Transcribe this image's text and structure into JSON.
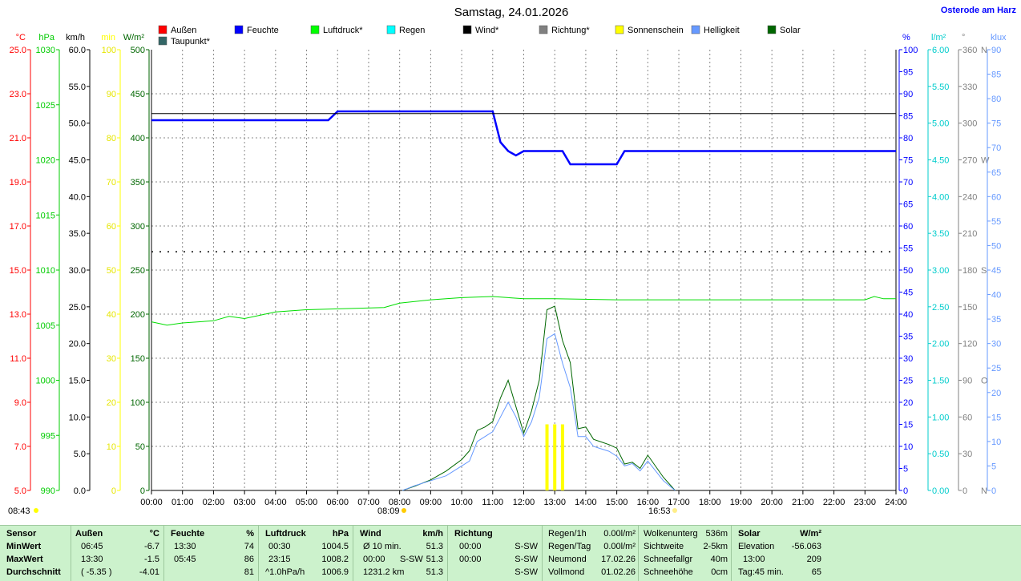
{
  "chart_data": {
    "type": "line",
    "title": "Samstag, 24.01.2026",
    "location": "Osterode am Harz",
    "legend": [
      {
        "label": "Außen",
        "color": "#ff0000"
      },
      {
        "label": "Taupunkt*",
        "color": "#336666"
      },
      {
        "label": "Feuchte",
        "color": "#0000ff"
      },
      {
        "label": "Luftdruck*",
        "color": "#00ff00"
      },
      {
        "label": "Regen",
        "color": "#00ffff"
      },
      {
        "label": "Wind*",
        "color": "#000000"
      },
      {
        "label": "Richtung*",
        "color": "#808080"
      },
      {
        "label": "Sonnenschein",
        "color": "#ffff00"
      },
      {
        "label": "Helligkeit",
        "color": "#6699ff"
      },
      {
        "label": "Solar",
        "color": "#006600"
      }
    ],
    "xlabels": [
      "00:00",
      "01:00",
      "02:00",
      "03:00",
      "04:00",
      "05:00",
      "06:00",
      "07:00",
      "08:00",
      "09:00",
      "10:00",
      "11:00",
      "12:00",
      "13:00",
      "14:00",
      "15:00",
      "16:00",
      "17:00",
      "18:00",
      "19:00",
      "20:00",
      "21:00",
      "22:00",
      "23:00",
      "24:00"
    ],
    "xlim": [
      0,
      24
    ],
    "sunrise": "08:09",
    "sunset": "16:53",
    "moonrise": "08:43",
    "left_axes": [
      {
        "unit": "°C",
        "color": "#ff0000",
        "ticks": [
          "5.0",
          "7.0",
          "9.0",
          "11.0",
          "13.0",
          "15.0",
          "17.0",
          "19.0",
          "21.0",
          "23.0",
          "25.0"
        ]
      },
      {
        "unit": "hPa",
        "color": "#00cc00",
        "ticks": [
          "990",
          "995",
          "1000",
          "1005",
          "1010",
          "1015",
          "1020",
          "1025",
          "1030"
        ]
      },
      {
        "unit": "km/h",
        "color": "#000000",
        "ticks": [
          "0.0",
          "5.0",
          "10.0",
          "15.0",
          "20.0",
          "25.0",
          "30.0",
          "35.0",
          "40.0",
          "45.0",
          "50.0",
          "55.0",
          "60.0"
        ]
      },
      {
        "unit": "min",
        "color": "#ffff00",
        "ticks": [
          "0",
          "10",
          "20",
          "30",
          "40",
          "50",
          "60",
          "70",
          "80",
          "90",
          "100"
        ]
      },
      {
        "unit": "W/m²",
        "color": "#006600",
        "ticks": [
          "0",
          "50",
          "100",
          "150",
          "200",
          "250",
          "300",
          "350",
          "400",
          "450",
          "500"
        ]
      }
    ],
    "right_axes": [
      {
        "unit": "%",
        "color": "#0000ff",
        "ticks": [
          "0",
          "5",
          "10",
          "15",
          "20",
          "25",
          "30",
          "35",
          "40",
          "45",
          "50",
          "55",
          "60",
          "65",
          "70",
          "75",
          "80",
          "85",
          "90",
          "95",
          "100"
        ]
      },
      {
        "unit": "l/m²",
        "color": "#00cccc",
        "ticks": [
          "0.00",
          "0.50",
          "1.00",
          "1.50",
          "2.00",
          "2.50",
          "3.00",
          "3.50",
          "4.00",
          "4.50",
          "5.00",
          "5.50",
          "6.00"
        ]
      },
      {
        "unit": "°",
        "color": "#808080",
        "ticks": [
          "0",
          "30",
          "60",
          "90",
          "120",
          "150",
          "180",
          "210",
          "240",
          "270",
          "300",
          "330",
          "360"
        ],
        "compass": [
          "N",
          "",
          "",
          "O",
          "",
          "",
          "S",
          "",
          "",
          "W",
          "",
          "",
          "N"
        ]
      },
      {
        "unit": "klux",
        "color": "#6699ff",
        "ticks": [
          "0",
          "5",
          "10",
          "15",
          "20",
          "25",
          "30",
          "35",
          "40",
          "45",
          "50",
          "55",
          "60",
          "65",
          "70",
          "75",
          "80",
          "85",
          "90"
        ]
      }
    ],
    "series": [
      {
        "name": "Feuchte",
        "unit": "%",
        "color": "#0000ff",
        "points": [
          [
            0,
            84
          ],
          [
            5.7,
            84
          ],
          [
            6.0,
            86
          ],
          [
            11.0,
            86
          ],
          [
            11.25,
            79
          ],
          [
            11.5,
            77
          ],
          [
            11.75,
            76
          ],
          [
            12.0,
            77
          ],
          [
            13.25,
            77
          ],
          [
            13.5,
            74
          ],
          [
            15.0,
            74
          ],
          [
            15.25,
            77
          ],
          [
            24.0,
            77
          ]
        ]
      },
      {
        "name": "Luftdruck",
        "unit": "hPa",
        "color": "#00dd00",
        "points": [
          [
            0,
            1005.3
          ],
          [
            0.5,
            1005.0
          ],
          [
            1.0,
            1005.2
          ],
          [
            2.0,
            1005.4
          ],
          [
            2.5,
            1005.8
          ],
          [
            3.0,
            1005.6
          ],
          [
            4.0,
            1006.2
          ],
          [
            5.0,
            1006.4
          ],
          [
            7.5,
            1006.6
          ],
          [
            8.0,
            1007.0
          ],
          [
            9.0,
            1007.3
          ],
          [
            10.0,
            1007.5
          ],
          [
            11.0,
            1007.6
          ],
          [
            11.5,
            1007.5
          ],
          [
            12.0,
            1007.4
          ],
          [
            13.0,
            1007.4
          ],
          [
            15.0,
            1007.3
          ],
          [
            23.0,
            1007.3
          ],
          [
            23.3,
            1007.6
          ],
          [
            23.6,
            1007.4
          ],
          [
            24.0,
            1007.4
          ]
        ]
      },
      {
        "name": "Solar",
        "unit": "W/m²",
        "color": "#006600",
        "points": [
          [
            8.09,
            0
          ],
          [
            8.5,
            5
          ],
          [
            9.0,
            12
          ],
          [
            9.5,
            22
          ],
          [
            10.0,
            35
          ],
          [
            10.25,
            45
          ],
          [
            10.5,
            68
          ],
          [
            10.75,
            72
          ],
          [
            11.0,
            78
          ],
          [
            11.25,
            105
          ],
          [
            11.5,
            125
          ],
          [
            11.75,
            95
          ],
          [
            12.0,
            65
          ],
          [
            12.25,
            90
          ],
          [
            12.5,
            125
          ],
          [
            12.75,
            205
          ],
          [
            13.0,
            209
          ],
          [
            13.25,
            170
          ],
          [
            13.5,
            145
          ],
          [
            13.75,
            70
          ],
          [
            14.0,
            72
          ],
          [
            14.25,
            58
          ],
          [
            14.5,
            55
          ],
          [
            14.75,
            52
          ],
          [
            15.0,
            48
          ],
          [
            15.25,
            30
          ],
          [
            15.5,
            32
          ],
          [
            15.75,
            25
          ],
          [
            16.0,
            40
          ],
          [
            16.5,
            15
          ],
          [
            16.88,
            0
          ]
        ]
      },
      {
        "name": "Helligkeit",
        "unit": "klux",
        "color": "#6699ff",
        "points": [
          [
            8.09,
            0
          ],
          [
            8.5,
            1
          ],
          [
            9.0,
            2
          ],
          [
            9.5,
            3
          ],
          [
            10.0,
            5
          ],
          [
            10.25,
            6
          ],
          [
            10.5,
            10
          ],
          [
            10.75,
            11
          ],
          [
            11.0,
            12
          ],
          [
            11.25,
            15
          ],
          [
            11.5,
            18
          ],
          [
            11.75,
            15
          ],
          [
            12.0,
            11
          ],
          [
            12.25,
            14
          ],
          [
            12.5,
            19
          ],
          [
            12.75,
            31
          ],
          [
            13.0,
            32
          ],
          [
            13.25,
            26
          ],
          [
            13.5,
            21
          ],
          [
            13.75,
            11
          ],
          [
            14.0,
            11
          ],
          [
            14.25,
            9
          ],
          [
            14.5,
            8.5
          ],
          [
            14.75,
            8
          ],
          [
            15.0,
            7
          ],
          [
            15.25,
            5
          ],
          [
            15.5,
            5.5
          ],
          [
            15.75,
            4
          ],
          [
            16.0,
            6
          ],
          [
            16.5,
            2
          ],
          [
            16.88,
            0
          ]
        ]
      },
      {
        "name": "Wind",
        "unit": "km/h",
        "color": "#000000",
        "points": [
          [
            0,
            51.3
          ],
          [
            24,
            51.3
          ]
        ]
      },
      {
        "name": "Richtung",
        "unit": "°",
        "color": "#404040",
        "style": "dotted",
        "points": [
          [
            0,
            195
          ],
          [
            24,
            195
          ]
        ]
      },
      {
        "name": "Sonnenschein",
        "unit": "min",
        "color": "#ffff00",
        "bars": [
          [
            12.75,
            15
          ],
          [
            13.0,
            15
          ],
          [
            13.25,
            15
          ]
        ]
      }
    ]
  },
  "stats": {
    "headers": {
      "sensor": "Sensor",
      "aussen": "Außen",
      "aussen_unit": "°C",
      "feuchte": "Feuchte",
      "feuchte_unit": "%",
      "druck": "Luftdruck",
      "druck_unit": "hPa",
      "wind": "Wind",
      "wind_unit": "km/h",
      "richtung": "Richtung",
      "solar": "Solar",
      "solar_unit": "W/m²"
    },
    "row_labels": [
      "MinWert",
      "MaxWert",
      "Durchschnitt"
    ],
    "aussen": [
      [
        "06:45",
        "-6.7"
      ],
      [
        "13:30",
        "-1.5"
      ],
      [
        "( -5.35 )",
        "-4.01"
      ]
    ],
    "feuchte": [
      [
        "13:30",
        "74"
      ],
      [
        "05:45",
        "86"
      ],
      [
        "",
        "81"
      ]
    ],
    "druck": [
      [
        "00:30",
        "1004.5"
      ],
      [
        "23:15",
        "1008.2"
      ],
      [
        "^1.0hPa/h",
        "1006.9"
      ]
    ],
    "wind": [
      [
        "Ø 10 min.",
        "",
        "51.3"
      ],
      [
        "00:00",
        "S-SW",
        "51.3"
      ],
      [
        "1231.2 km",
        "",
        "51.3"
      ]
    ],
    "richtung": [
      [
        "00:00",
        "S-SW"
      ],
      [
        "00:00",
        "S-SW"
      ],
      [
        "",
        "S-SW"
      ]
    ],
    "rain": [
      [
        "Regen/1h",
        "0.00l/m²"
      ],
      [
        "Regen/Tag",
        "0.00l/m²"
      ],
      [
        "Neumond",
        "17.02.26"
      ],
      [
        "Vollmond",
        "01.02.26"
      ]
    ],
    "cloud": [
      [
        "Wolkenunterg",
        "536m"
      ],
      [
        "Sichtweite",
        "2-5km"
      ],
      [
        "Schneefallgr",
        "40m"
      ],
      [
        "Schneehöhe",
        "0cm"
      ]
    ],
    "solar": [
      [
        "Elevation",
        "-56.063"
      ],
      [
        "13:00",
        "209"
      ],
      [
        "Tag:45 min.",
        "65"
      ]
    ]
  }
}
